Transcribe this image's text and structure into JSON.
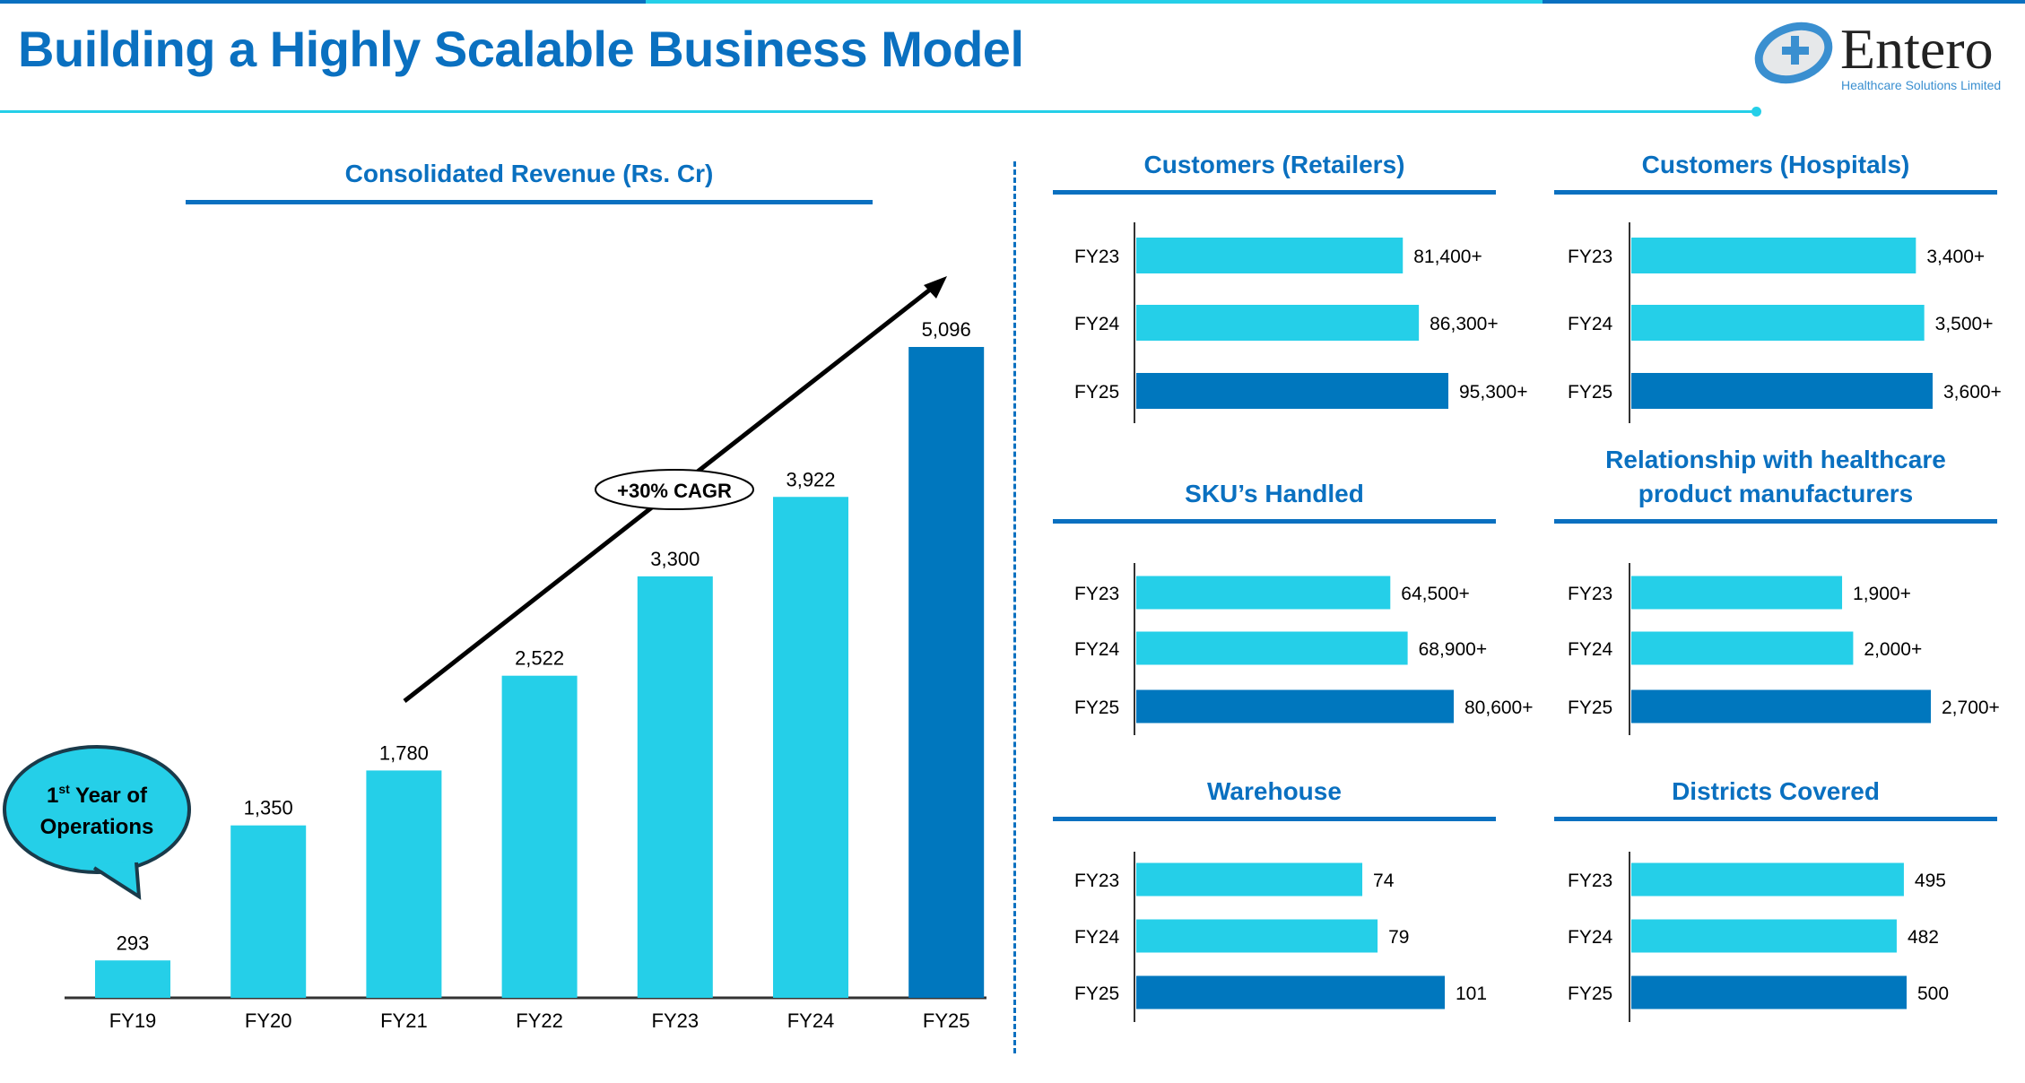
{
  "header": {
    "title": "Building a Highly Scalable Business Model",
    "logo_name": "Entero",
    "logo_sub": "Healthcare Solutions Limited"
  },
  "colors": {
    "title": "#0a70c0",
    "bar": "#25cfe8",
    "bar_highlight": "#0077be"
  },
  "chart_data": [
    {
      "type": "bar",
      "title": "Consolidated Revenue (Rs. Cr)",
      "categories": [
        "FY19",
        "FY20",
        "FY21",
        "FY22",
        "FY23",
        "FY24",
        "FY25"
      ],
      "values": [
        293,
        1350,
        1780,
        2522,
        3300,
        3922,
        5096
      ],
      "labels": [
        "293",
        "1,350",
        "1,780",
        "2,522",
        "3,300",
        "3,922",
        "5,096"
      ],
      "annotations": {
        "cagr": "+30% CAGR",
        "bubble_sup": "st",
        "bubble_line1_pre": "1",
        "bubble_line1_post": " Year of",
        "bubble_line2": "Operations"
      }
    },
    {
      "type": "bar",
      "orientation": "horizontal",
      "title": "Customers (Retailers)",
      "categories": [
        "FY23",
        "FY24",
        "FY25"
      ],
      "values": [
        81400,
        86300,
        95300
      ],
      "labels": [
        "81,400+",
        "86,300+",
        "95,300+"
      ]
    },
    {
      "type": "bar",
      "orientation": "horizontal",
      "title": "Customers (Hospitals)",
      "categories": [
        "FY23",
        "FY24",
        "FY25"
      ],
      "values": [
        3400,
        3500,
        3600
      ],
      "labels": [
        "3,400+",
        "3,500+",
        "3,600+"
      ]
    },
    {
      "type": "bar",
      "orientation": "horizontal",
      "title": "SKU’s Handled",
      "categories": [
        "FY23",
        "FY24",
        "FY25"
      ],
      "values": [
        64500,
        68900,
        80600
      ],
      "labels": [
        "64,500+",
        "68,900+",
        "80,600+"
      ]
    },
    {
      "type": "bar",
      "orientation": "horizontal",
      "title": "Relationship  with healthcare product manufacturers",
      "title_lines": [
        "Relationship  with healthcare",
        "product manufacturers"
      ],
      "categories": [
        "FY23",
        "FY24",
        "FY25"
      ],
      "values": [
        1900,
        2000,
        2700
      ],
      "labels": [
        "1,900+",
        "2,000+",
        "2,700+"
      ]
    },
    {
      "type": "bar",
      "orientation": "horizontal",
      "title": "Warehouse",
      "categories": [
        "FY23",
        "FY24",
        "FY25"
      ],
      "values": [
        74,
        79,
        101
      ],
      "labels": [
        "74",
        "79",
        "101"
      ]
    },
    {
      "type": "bar",
      "orientation": "horizontal",
      "title": "Districts Covered",
      "categories": [
        "FY23",
        "FY24",
        "FY25"
      ],
      "values": [
        495,
        482,
        500
      ],
      "labels": [
        "495",
        "482",
        "500"
      ]
    }
  ]
}
